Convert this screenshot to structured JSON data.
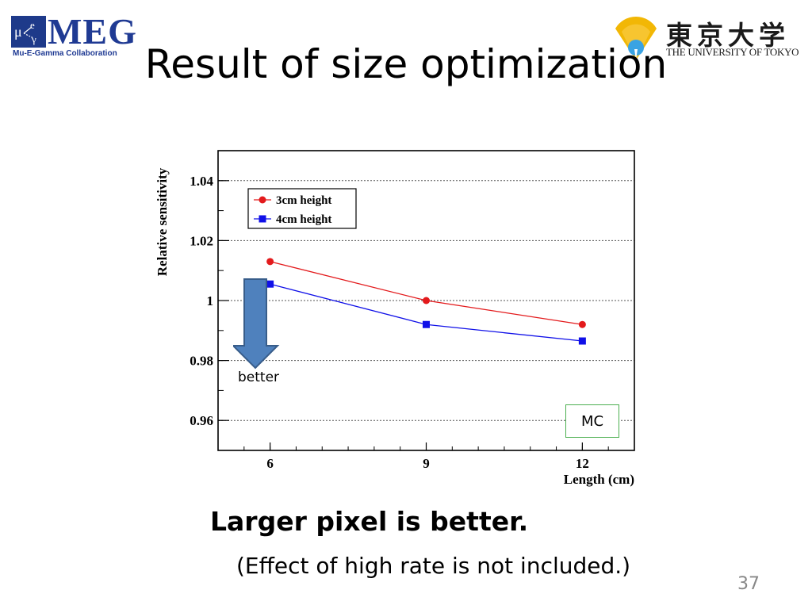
{
  "slide": {
    "title": "Result of size optimization",
    "conclusion": "Larger pixel is better.",
    "note": "(Effect of high rate is not included.)",
    "page_number": "37",
    "arrow_label": "better",
    "mc_label": "MC"
  },
  "logos": {
    "meg": {
      "text": "MEG",
      "subtitle": "Mu-E-Gamma Collaboration",
      "color": "#1f3a93"
    },
    "utokyo": {
      "name": "東京大学",
      "subtitle": "THE UNIVERSITY OF TOKYO"
    }
  },
  "chart_data": {
    "type": "line",
    "xlabel": "Length (cm)",
    "ylabel": "Relative sensitivity",
    "x": [
      6,
      9,
      12
    ],
    "xticks": [
      "6",
      "9",
      "12"
    ],
    "ylim": [
      0.95,
      1.05
    ],
    "yticks": [
      "0.96",
      "0.98",
      "1",
      "1.02",
      "1.04"
    ],
    "ytick_values": [
      0.96,
      0.98,
      1.0,
      1.02,
      1.04
    ],
    "grid": "horizontal dotted",
    "legend_position": "top-left",
    "series": [
      {
        "name": "3cm height",
        "values": [
          1.013,
          1.0,
          0.992
        ],
        "color": "#e31a1c",
        "marker": "circle"
      },
      {
        "name": "4cm height",
        "values": [
          1.0055,
          0.992,
          0.9865
        ],
        "color": "#1010e8",
        "marker": "square"
      }
    ]
  }
}
